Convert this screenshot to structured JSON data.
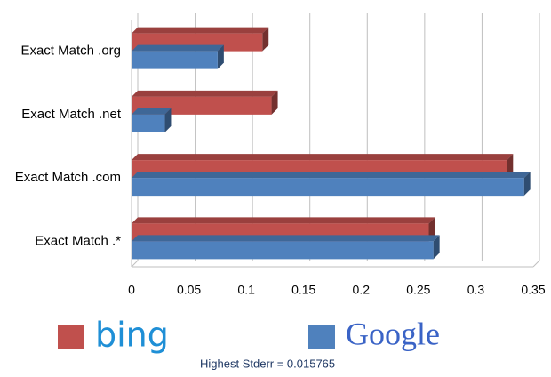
{
  "chart_data": {
    "type": "hbar",
    "categories": [
      "Exact Match .org",
      "Exact Match .net",
      "Exact Match .com",
      "Exact Match .*"
    ],
    "series": [
      {
        "name": "bing",
        "color": "#c0504d",
        "values": [
          0.114,
          0.122,
          0.327,
          0.259
        ]
      },
      {
        "name": "Google",
        "color": "#4f81bd",
        "values": [
          0.075,
          0.029,
          0.342,
          0.263
        ]
      }
    ],
    "xlim": [
      0,
      0.35
    ],
    "xticks": [
      0,
      0.05,
      0.1,
      0.15,
      0.2,
      0.25,
      0.3,
      0.35
    ],
    "grid": true,
    "note": "Highest Stderr = 0.015765"
  }
}
